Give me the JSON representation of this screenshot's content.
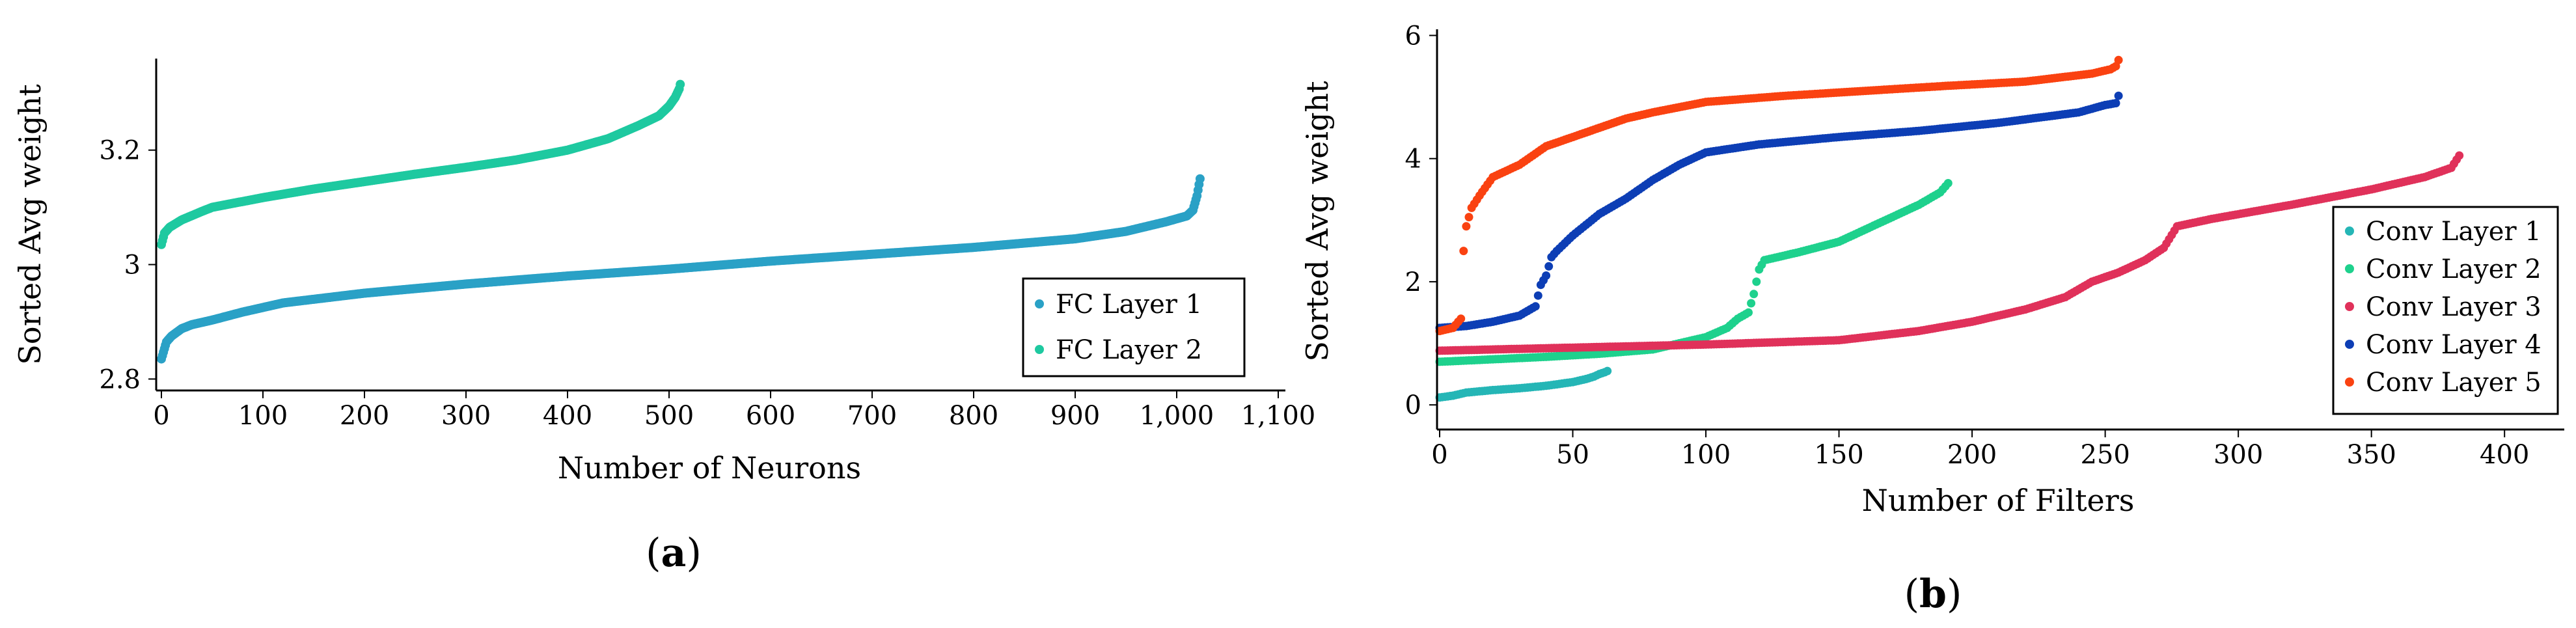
{
  "chart_data": [
    {
      "type": "scatter",
      "caption_letter": "a",
      "xlabel": "Number of Neurons",
      "ylabel": "Sorted Avg weight",
      "xlim": [
        0,
        1100
      ],
      "ylim": [
        2.78,
        3.36
      ],
      "xticks": [
        0,
        100,
        200,
        300,
        400,
        500,
        600,
        700,
        800,
        900,
        1000,
        1100
      ],
      "xtick_labels": [
        "0",
        "100",
        "200",
        "300",
        "400",
        "500",
        "600",
        "700",
        "800",
        "900",
        "1,000",
        "1,100"
      ],
      "yticks": [
        2.8,
        3.0,
        3.2
      ],
      "ytick_labels": [
        "2.8",
        "3",
        "3.2"
      ],
      "legend_position": "bottom-right",
      "series": [
        {
          "name": "FC Layer 1",
          "color": "#2aa1c6",
          "count": 1024,
          "x": [
            0,
            5,
            10,
            20,
            30,
            50,
            80,
            120,
            200,
            300,
            400,
            500,
            600,
            700,
            800,
            900,
            950,
            990,
            1010,
            1016,
            1020,
            1023
          ],
          "y": [
            2.835,
            2.865,
            2.875,
            2.888,
            2.895,
            2.903,
            2.917,
            2.933,
            2.95,
            2.966,
            2.98,
            2.992,
            3.006,
            3.018,
            3.03,
            3.045,
            3.058,
            3.075,
            3.085,
            3.095,
            3.12,
            3.15
          ]
        },
        {
          "name": "FC Layer 2",
          "color": "#1ec9a0",
          "count": 512,
          "x": [
            0,
            3,
            8,
            20,
            40,
            50,
            100,
            150,
            200,
            250,
            300,
            350,
            400,
            440,
            470,
            490,
            500,
            506,
            510,
            511
          ],
          "y": [
            3.035,
            3.055,
            3.065,
            3.078,
            3.093,
            3.1,
            3.117,
            3.132,
            3.145,
            3.158,
            3.17,
            3.183,
            3.2,
            3.22,
            3.243,
            3.26,
            3.277,
            3.292,
            3.307,
            3.315
          ]
        }
      ]
    },
    {
      "type": "scatter",
      "caption_letter": "b",
      "xlabel": "Number of Filters",
      "ylabel": "Sorted Avg weight",
      "xlim": [
        0,
        420
      ],
      "ylim": [
        -0.4,
        6.1
      ],
      "xticks": [
        0,
        50,
        100,
        150,
        200,
        250,
        300,
        350,
        400
      ],
      "xtick_labels": [
        "0",
        "50",
        "100",
        "150",
        "200",
        "250",
        "300",
        "350",
        "400"
      ],
      "yticks": [
        0,
        2,
        4,
        6
      ],
      "ytick_labels": [
        "0",
        "2",
        "4",
        "6"
      ],
      "legend_position": "bottom-right",
      "series": [
        {
          "name": "Conv Layer 1",
          "color": "#25b6b6",
          "count": 64,
          "x": [
            0,
            5,
            10,
            20,
            30,
            40,
            50,
            55,
            58,
            60,
            62,
            63
          ],
          "y": [
            0.12,
            0.15,
            0.2,
            0.24,
            0.27,
            0.31,
            0.37,
            0.42,
            0.46,
            0.5,
            0.53,
            0.55
          ]
        },
        {
          "name": "Conv Layer 2",
          "color": "#1ed18d",
          "count": 192,
          "x": [
            0,
            20,
            40,
            60,
            80,
            90,
            100,
            108,
            112,
            116,
            118,
            120,
            122,
            125,
            135,
            150,
            160,
            170,
            180,
            188,
            191
          ],
          "y": [
            0.7,
            0.74,
            0.78,
            0.83,
            0.9,
            1.0,
            1.1,
            1.25,
            1.4,
            1.5,
            1.8,
            2.2,
            2.35,
            2.38,
            2.48,
            2.65,
            2.85,
            3.05,
            3.25,
            3.45,
            3.6
          ]
        },
        {
          "name": "Conv Layer 3",
          "color": "#e0315a",
          "count": 384,
          "x": [
            0,
            20,
            50,
            100,
            150,
            180,
            200,
            220,
            235,
            245,
            255,
            265,
            272,
            277,
            290,
            320,
            350,
            370,
            380,
            383
          ],
          "y": [
            0.88,
            0.9,
            0.93,
            0.98,
            1.05,
            1.2,
            1.35,
            1.55,
            1.75,
            2.0,
            2.15,
            2.35,
            2.55,
            2.9,
            3.02,
            3.25,
            3.5,
            3.7,
            3.85,
            4.05
          ]
        },
        {
          "name": "Conv Layer 4",
          "color": "#0d3eb5",
          "count": 256,
          "x": [
            0,
            10,
            20,
            30,
            36,
            38,
            40,
            42,
            44,
            50,
            60,
            70,
            80,
            90,
            100,
            120,
            150,
            180,
            210,
            240,
            250,
            254,
            255
          ],
          "y": [
            1.25,
            1.28,
            1.35,
            1.45,
            1.6,
            1.95,
            2.1,
            2.4,
            2.5,
            2.75,
            3.1,
            3.35,
            3.65,
            3.9,
            4.1,
            4.23,
            4.35,
            4.45,
            4.58,
            4.75,
            4.87,
            4.9,
            5.02
          ]
        },
        {
          "name": "Conv Layer 5",
          "color": "#fa4211",
          "count": 256,
          "x": [
            0,
            5,
            8,
            9,
            10,
            12,
            15,
            20,
            30,
            40,
            50,
            60,
            70,
            80,
            100,
            130,
            160,
            190,
            220,
            245,
            252,
            254,
            255
          ],
          "y": [
            1.2,
            1.25,
            1.4,
            2.5,
            2.9,
            3.2,
            3.4,
            3.7,
            3.9,
            4.2,
            4.35,
            4.5,
            4.65,
            4.75,
            4.92,
            5.02,
            5.1,
            5.18,
            5.25,
            5.38,
            5.45,
            5.5,
            5.6
          ]
        }
      ]
    }
  ]
}
